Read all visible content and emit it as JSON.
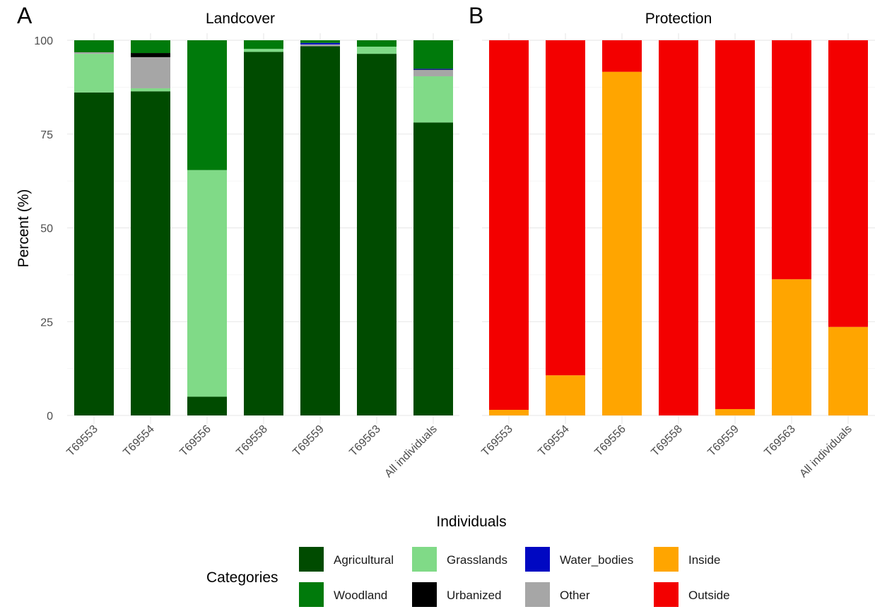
{
  "chart_data": [
    {
      "type": "bar",
      "stacked": true,
      "panel": "A",
      "title": "Landcover",
      "xlabel": "Individuals",
      "ylabel": "Percent (%)",
      "ylim": [
        0,
        100
      ],
      "yticks": [
        0,
        25,
        50,
        75,
        100
      ],
      "grid": true,
      "categories": [
        "T69553",
        "T69554",
        "T69556",
        "T69558",
        "T69559",
        "T69563",
        "All individuals"
      ],
      "series": [
        {
          "name": "Agricultural",
          "color": "#004b00",
          "values": [
            86.1,
            86.4,
            5.0,
            96.9,
            98.4,
            96.4,
            78.1
          ]
        },
        {
          "name": "Grasslands",
          "color": "#80da87",
          "values": [
            10.3,
            0.8,
            60.4,
            0.8,
            0.0,
            1.9,
            12.3
          ]
        },
        {
          "name": "Other",
          "color": "#a6a6a6",
          "values": [
            0.4,
            8.3,
            0.0,
            0.0,
            0.5,
            0.0,
            1.7
          ]
        },
        {
          "name": "Urbanized",
          "color": "#000000",
          "values": [
            0.0,
            1.1,
            0.0,
            0.0,
            0.0,
            0.0,
            0.1
          ]
        },
        {
          "name": "Water_bodies",
          "color": "#0008c2",
          "values": [
            0.0,
            0.0,
            0.0,
            0.0,
            0.4,
            0.0,
            0.2
          ]
        },
        {
          "name": "Woodland",
          "color": "#007a0b",
          "values": [
            3.2,
            3.4,
            34.6,
            2.3,
            0.7,
            1.7,
            7.6
          ]
        }
      ]
    },
    {
      "type": "bar",
      "stacked": true,
      "panel": "B",
      "title": "Protection",
      "xlabel": "Individuals",
      "ylabel": "Percent (%)",
      "ylim": [
        0,
        100
      ],
      "yticks": [
        0,
        25,
        50,
        75,
        100
      ],
      "grid": true,
      "categories": [
        "T69553",
        "T69554",
        "T69556",
        "T69558",
        "T69559",
        "T69563",
        "All individuals"
      ],
      "series": [
        {
          "name": "Inside",
          "color": "#ffa500",
          "values": [
            1.5,
            10.7,
            91.6,
            0.0,
            1.7,
            36.3,
            23.6
          ]
        },
        {
          "name": "Outside",
          "color": "#f30000",
          "values": [
            98.5,
            89.3,
            8.4,
            100.0,
            98.3,
            63.7,
            76.4
          ]
        }
      ]
    }
  ],
  "legend": {
    "title": "Categories",
    "placement": "bottom",
    "items": [
      {
        "name": "Agricultural",
        "color": "#004b00"
      },
      {
        "name": "Woodland",
        "color": "#007a0b"
      },
      {
        "name": "Grasslands",
        "color": "#80da87"
      },
      {
        "name": "Urbanized",
        "color": "#000000"
      },
      {
        "name": "Water_bodies",
        "color": "#0008c2"
      },
      {
        "name": "Other",
        "color": "#a6a6a6"
      },
      {
        "name": "Inside",
        "color": "#ffa500"
      },
      {
        "name": "Outside",
        "color": "#f30000"
      }
    ]
  }
}
